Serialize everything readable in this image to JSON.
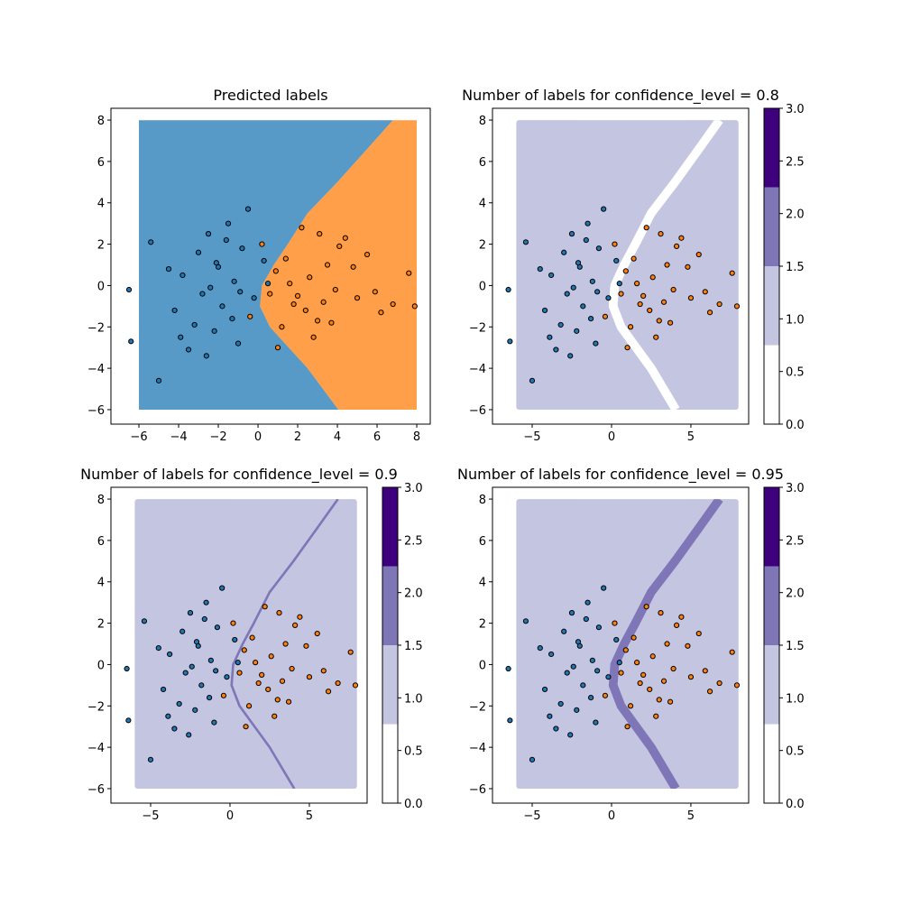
{
  "chart_data": [
    {
      "type": "scatter",
      "title": "Predicted labels",
      "xlim": [
        -7.41,
        8.68
      ],
      "ylim": [
        -6.7,
        8.57
      ],
      "xticks": [
        {
          "value": -6,
          "label": "−6"
        },
        {
          "value": -4,
          "label": "−4"
        },
        {
          "value": -2,
          "label": "−2"
        },
        0,
        2,
        4,
        6,
        8
      ],
      "yticks": [
        {
          "value": -6,
          "label": "−6"
        },
        {
          "value": -4,
          "label": "−4"
        },
        {
          "value": -2,
          "label": "−2"
        },
        0,
        2,
        4,
        6,
        8
      ],
      "region_x": [
        -6,
        8
      ],
      "region_y": [
        -6,
        8
      ],
      "region_colors": [
        "#1f77b4",
        "#ff7f0e"
      ],
      "boundary": {
        "x": [
          4.05,
          2.5,
          0.6,
          0.1,
          0.2,
          0.8,
          1.5,
          2.5,
          4.0,
          5.5,
          6.8
        ],
        "y": [
          -6,
          -4,
          -2,
          -1,
          0,
          1,
          2,
          3.5,
          5,
          6.6,
          8
        ]
      },
      "series": [
        {
          "color": "#1f77b4",
          "x": [
            -6.5,
            -6.4,
            -5.0,
            -5.4,
            -4.2,
            -3.8,
            -3.5,
            -3.0,
            -2.8,
            -2.5,
            -2.2,
            -2.0,
            -1.8,
            -1.5,
            -1.2,
            -1.0,
            -0.8,
            -0.5,
            -0.2,
            0.3,
            -3.2,
            -2.6,
            -1.6,
            -0.9,
            -4.5,
            -2.1,
            -1.3,
            0.5,
            -3.9,
            -2.4
          ],
          "y": [
            -0.2,
            -2.7,
            -4.6,
            2.1,
            -1.2,
            0.5,
            -3.1,
            1.6,
            -0.4,
            2.5,
            -2.2,
            0.9,
            -1.0,
            3.0,
            0.2,
            -2.8,
            1.8,
            3.7,
            -0.6,
            1.2,
            -1.9,
            -3.4,
            2.2,
            -0.3,
            0.8,
            1.1,
            -1.6,
            0.1,
            -2.5,
            -0.1
          ]
        },
        {
          "color": "#ff7f0e",
          "x": [
            7.9,
            7.6,
            6.2,
            5.5,
            5.0,
            4.4,
            3.9,
            3.5,
            3.0,
            2.6,
            2.2,
            1.8,
            1.4,
            1.0,
            0.6,
            0.2,
            2.8,
            3.3,
            4.8,
            5.9,
            1.6,
            2.4,
            3.7,
            0.9,
            4.1,
            6.8,
            1.2,
            -0.4,
            2.0,
            3.1
          ],
          "y": [
            -1.0,
            0.6,
            -1.3,
            1.5,
            -0.6,
            2.3,
            -0.2,
            1.0,
            -1.7,
            0.4,
            2.8,
            -0.9,
            1.3,
            -3.0,
            -0.4,
            2.0,
            -2.5,
            -0.8,
            0.9,
            -0.3,
            0.1,
            -1.2,
            -1.8,
            0.7,
            1.9,
            -0.9,
            -2.0,
            -1.5,
            -0.5,
            2.5
          ]
        }
      ]
    },
    {
      "type": "scatter",
      "title": "Number of labels for confidence_level = 0.8",
      "xlim": [
        -7.5,
        8.64
      ],
      "ylim": [
        -6.7,
        8.57
      ],
      "xticks": [
        {
          "value": -5,
          "label": "−5"
        },
        0,
        5
      ],
      "yticks": [
        {
          "value": -6,
          "label": "−6"
        },
        {
          "value": -4,
          "label": "−4"
        },
        {
          "value": -2,
          "label": "−2"
        },
        0,
        2,
        4,
        6,
        8
      ],
      "region_x": [
        -6,
        8
      ],
      "region_y": [
        -6,
        8
      ],
      "region_value": 1,
      "band": {
        "value": 0,
        "width": 0.55,
        "x": [
          4.05,
          2.5,
          0.6,
          0.1,
          0.2,
          0.8,
          1.5,
          2.5,
          4.0,
          5.5,
          6.8
        ],
        "y": [
          -6,
          -4,
          -2,
          -1,
          0,
          1,
          2,
          3.5,
          5,
          6.6,
          8
        ]
      },
      "colorbar": {
        "bounds": [
          0,
          0.75,
          1.5,
          2.25,
          3
        ],
        "colors": [
          "#ffffff",
          "#c4c5e0",
          "#7f76b8",
          "#3f007d"
        ],
        "ylim": [
          0,
          3
        ],
        "yticks": [
          {
            "value": 0,
            "label": "0.0"
          },
          0.5,
          {
            "value": 1,
            "label": "1.0"
          },
          1.5,
          {
            "value": 2,
            "label": "2.0"
          },
          2.5,
          {
            "value": 3,
            "label": "3.0"
          }
        ]
      },
      "series": [
        {
          "color": "#1f77b4",
          "x": [
            -6.5,
            -6.4,
            -5.0,
            -5.4,
            -4.2,
            -3.8,
            -3.5,
            -3.0,
            -2.8,
            -2.5,
            -2.2,
            -2.0,
            -1.8,
            -1.5,
            -1.2,
            -1.0,
            -0.8,
            -0.5,
            -0.2,
            0.3,
            -3.2,
            -2.6,
            -1.6,
            -0.9,
            -4.5,
            -2.1,
            -1.3,
            0.5,
            -3.9,
            -2.4
          ],
          "y": [
            -0.2,
            -2.7,
            -4.6,
            2.1,
            -1.2,
            0.5,
            -3.1,
            1.6,
            -0.4,
            2.5,
            -2.2,
            0.9,
            -1.0,
            3.0,
            0.2,
            -2.8,
            1.8,
            3.7,
            -0.6,
            1.2,
            -1.9,
            -3.4,
            2.2,
            -0.3,
            0.8,
            1.1,
            -1.6,
            0.1,
            -2.5,
            -0.1
          ]
        },
        {
          "color": "#ff7f0e",
          "x": [
            7.9,
            7.6,
            6.2,
            5.5,
            5.0,
            4.4,
            3.9,
            3.5,
            3.0,
            2.6,
            2.2,
            1.8,
            1.4,
            1.0,
            0.6,
            0.2,
            2.8,
            3.3,
            4.8,
            5.9,
            1.6,
            2.4,
            3.7,
            0.9,
            4.1,
            6.8,
            1.2,
            -0.4,
            2.0,
            3.1
          ],
          "y": [
            -1.0,
            0.6,
            -1.3,
            1.5,
            -0.6,
            2.3,
            -0.2,
            1.0,
            -1.7,
            0.4,
            2.8,
            -0.9,
            1.3,
            -3.0,
            -0.4,
            2.0,
            -2.5,
            -0.8,
            0.9,
            -0.3,
            0.1,
            -1.2,
            -1.8,
            0.7,
            1.9,
            -0.9,
            -2.0,
            -1.5,
            -0.5,
            2.5
          ]
        }
      ]
    },
    {
      "type": "scatter",
      "title": "Number of labels for confidence_level = 0.9",
      "xlim": [
        -7.5,
        8.64
      ],
      "ylim": [
        -6.7,
        8.57
      ],
      "xticks": [
        {
          "value": -5,
          "label": "−5"
        },
        0,
        5
      ],
      "yticks": [
        {
          "value": -6,
          "label": "−6"
        },
        {
          "value": -4,
          "label": "−4"
        },
        {
          "value": -2,
          "label": "−2"
        },
        0,
        2,
        4,
        6,
        8
      ],
      "region_x": [
        -6,
        8
      ],
      "region_y": [
        -6,
        8
      ],
      "region_value": 1,
      "band": {
        "value": 2,
        "width": 0.15,
        "x": [
          4.05,
          2.5,
          0.6,
          0.1,
          0.2,
          0.8,
          1.5,
          2.5,
          4.0,
          5.5,
          6.8
        ],
        "y": [
          -6,
          -4,
          -2,
          -1,
          0,
          1,
          2,
          3.5,
          5,
          6.6,
          8
        ]
      },
      "colorbar": {
        "bounds": [
          0,
          0.75,
          1.5,
          2.25,
          3
        ],
        "colors": [
          "#ffffff",
          "#c4c5e0",
          "#7f76b8",
          "#3f007d"
        ],
        "ylim": [
          0,
          3
        ],
        "yticks": [
          {
            "value": 0,
            "label": "0.0"
          },
          0.5,
          {
            "value": 1,
            "label": "1.0"
          },
          1.5,
          {
            "value": 2,
            "label": "2.0"
          },
          2.5,
          {
            "value": 3,
            "label": "3.0"
          }
        ]
      },
      "series": [
        {
          "color": "#1f77b4",
          "x": [
            -6.5,
            -6.4,
            -5.0,
            -5.4,
            -4.2,
            -3.8,
            -3.5,
            -3.0,
            -2.8,
            -2.5,
            -2.2,
            -2.0,
            -1.8,
            -1.5,
            -1.2,
            -1.0,
            -0.8,
            -0.5,
            -0.2,
            0.3,
            -3.2,
            -2.6,
            -1.6,
            -0.9,
            -4.5,
            -2.1,
            -1.3,
            0.5,
            -3.9,
            -2.4
          ],
          "y": [
            -0.2,
            -2.7,
            -4.6,
            2.1,
            -1.2,
            0.5,
            -3.1,
            1.6,
            -0.4,
            2.5,
            -2.2,
            0.9,
            -1.0,
            3.0,
            0.2,
            -2.8,
            1.8,
            3.7,
            -0.6,
            1.2,
            -1.9,
            -3.4,
            2.2,
            -0.3,
            0.8,
            1.1,
            -1.6,
            0.1,
            -2.5,
            -0.1
          ]
        },
        {
          "color": "#ff7f0e",
          "x": [
            7.9,
            7.6,
            6.2,
            5.5,
            5.0,
            4.4,
            3.9,
            3.5,
            3.0,
            2.6,
            2.2,
            1.8,
            1.4,
            1.0,
            0.6,
            0.2,
            2.8,
            3.3,
            4.8,
            5.9,
            1.6,
            2.4,
            3.7,
            0.9,
            4.1,
            6.8,
            1.2,
            -0.4,
            2.0,
            3.1
          ],
          "y": [
            -1.0,
            0.6,
            -1.3,
            1.5,
            -0.6,
            2.3,
            -0.2,
            1.0,
            -1.7,
            0.4,
            2.8,
            -0.9,
            1.3,
            -3.0,
            -0.4,
            2.0,
            -2.5,
            -0.8,
            0.9,
            -0.3,
            0.1,
            -1.2,
            -1.8,
            0.7,
            1.9,
            -0.9,
            -2.0,
            -1.5,
            -0.5,
            2.5
          ]
        }
      ]
    },
    {
      "type": "scatter",
      "title": "Number of labels for confidence_level = 0.95",
      "xlim": [
        -7.5,
        8.64
      ],
      "ylim": [
        -6.7,
        8.57
      ],
      "xticks": [
        {
          "value": -5,
          "label": "−5"
        },
        0,
        5
      ],
      "yticks": [
        {
          "value": -6,
          "label": "−6"
        },
        {
          "value": -4,
          "label": "−4"
        },
        {
          "value": -2,
          "label": "−2"
        },
        0,
        2,
        4,
        6,
        8
      ],
      "region_x": [
        -6,
        8
      ],
      "region_y": [
        -6,
        8
      ],
      "region_value": 1,
      "band": {
        "value": 2,
        "width": 0.55,
        "x": [
          4.05,
          2.5,
          0.6,
          0.1,
          0.2,
          0.8,
          1.5,
          2.5,
          4.0,
          5.5,
          6.8
        ],
        "y": [
          -6,
          -4,
          -2,
          -1,
          0,
          1,
          2,
          3.5,
          5,
          6.6,
          8
        ]
      },
      "colorbar": {
        "bounds": [
          0,
          0.75,
          1.5,
          2.25,
          3
        ],
        "colors": [
          "#ffffff",
          "#c4c5e0",
          "#7f76b8",
          "#3f007d"
        ],
        "ylim": [
          0,
          3
        ],
        "yticks": [
          {
            "value": 0,
            "label": "0.0"
          },
          0.5,
          {
            "value": 1,
            "label": "1.0"
          },
          1.5,
          {
            "value": 2,
            "label": "2.0"
          },
          2.5,
          {
            "value": 3,
            "label": "3.0"
          }
        ]
      },
      "series": [
        {
          "color": "#1f77b4",
          "x": [
            -6.5,
            -6.4,
            -5.0,
            -5.4,
            -4.2,
            -3.8,
            -3.5,
            -3.0,
            -2.8,
            -2.5,
            -2.2,
            -2.0,
            -1.8,
            -1.5,
            -1.2,
            -1.0,
            -0.8,
            -0.5,
            -0.2,
            0.3,
            -3.2,
            -2.6,
            -1.6,
            -0.9,
            -4.5,
            -2.1,
            -1.3,
            0.5,
            -3.9,
            -2.4
          ],
          "y": [
            -0.2,
            -2.7,
            -4.6,
            2.1,
            -1.2,
            0.5,
            -3.1,
            1.6,
            -0.4,
            2.5,
            -2.2,
            0.9,
            -1.0,
            3.0,
            0.2,
            -2.8,
            1.8,
            3.7,
            -0.6,
            1.2,
            -1.9,
            -3.4,
            2.2,
            -0.3,
            0.8,
            1.1,
            -1.6,
            0.1,
            -2.5,
            -0.1
          ]
        },
        {
          "color": "#ff7f0e",
          "x": [
            7.9,
            7.6,
            6.2,
            5.5,
            5.0,
            4.4,
            3.9,
            3.5,
            3.0,
            2.6,
            2.2,
            1.8,
            1.4,
            1.0,
            0.6,
            0.2,
            2.8,
            3.3,
            4.8,
            5.9,
            1.6,
            2.4,
            3.7,
            0.9,
            4.1,
            6.8,
            1.2,
            -0.4,
            2.0,
            3.1
          ],
          "y": [
            -1.0,
            0.6,
            -1.3,
            1.5,
            -0.6,
            2.3,
            -0.2,
            1.0,
            -1.7,
            0.4,
            2.8,
            -0.9,
            1.3,
            -3.0,
            -0.4,
            2.0,
            -2.5,
            -0.8,
            0.9,
            -0.3,
            0.1,
            -1.2,
            -1.8,
            0.7,
            1.9,
            -0.9,
            -2.0,
            -1.5,
            -0.5,
            2.5
          ]
        }
      ]
    }
  ]
}
